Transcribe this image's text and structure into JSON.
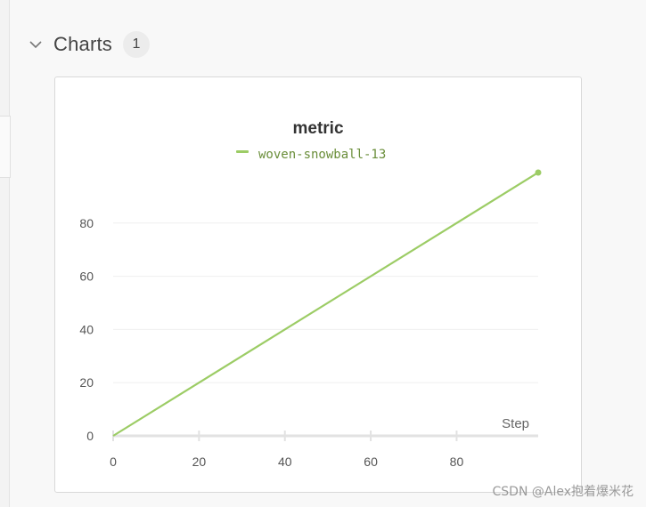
{
  "section": {
    "title": "Charts",
    "count": "1",
    "collapse_icon": "chevron-down-icon"
  },
  "watermark": "CSDN @Alex抱着爆米花",
  "colors": {
    "series": "#9ccc65",
    "legend_text": "#6a8e3a",
    "grid": "#efefef",
    "axis": "#e2e2e2"
  },
  "chart_data": {
    "type": "line",
    "title": "metric",
    "xlabel": "Step",
    "ylabel": "",
    "xlim": [
      0,
      99
    ],
    "ylim": [
      0,
      100
    ],
    "x_ticks": [
      0,
      20,
      40,
      60,
      80
    ],
    "y_ticks": [
      0,
      20,
      40,
      60,
      80
    ],
    "grid": true,
    "legend_position": "top-center",
    "series": [
      {
        "name": "woven-snowball-13",
        "x": [
          0,
          99
        ],
        "y": [
          0,
          99
        ]
      }
    ]
  }
}
